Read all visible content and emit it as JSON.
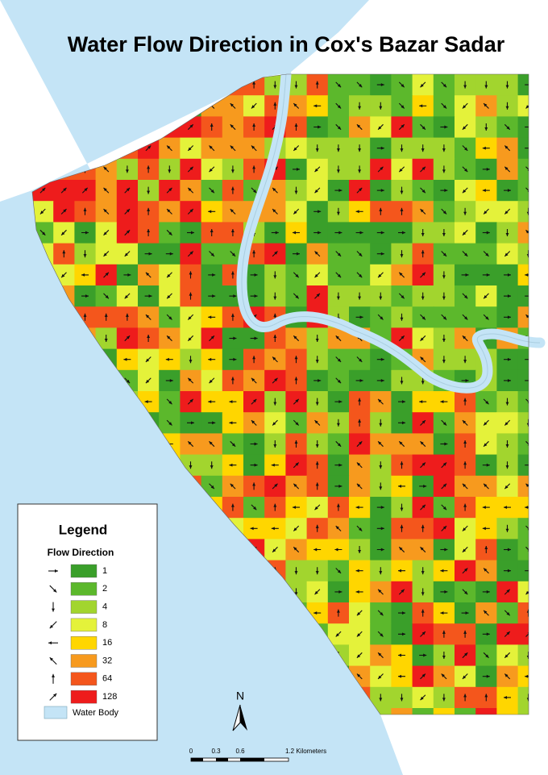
{
  "title": "Water Flow Direction in Cox's Bazar Sadar",
  "legend": {
    "title": "Legend",
    "subtitle": "Flow Direction",
    "items": [
      {
        "label": 1,
        "color": "#3a9f2a"
      },
      {
        "label": 2,
        "color": "#5cb82c"
      },
      {
        "label": 4,
        "color": "#a2d52e"
      },
      {
        "label": 8,
        "color": "#e4f23a"
      },
      {
        "label": 16,
        "color": "#ffd600"
      },
      {
        "label": 32,
        "color": "#f79a1e"
      },
      {
        "label": 64,
        "color": "#f4561c"
      },
      {
        "label": 128,
        "color": "#ee1c1c"
      }
    ],
    "water_body": "Water Body",
    "water_color": "#c4e4f6"
  },
  "north": "N",
  "scale_bar": {
    "labels": [
      "0",
      "0.3",
      "0.6",
      "1.2 Kilometers"
    ]
  }
}
